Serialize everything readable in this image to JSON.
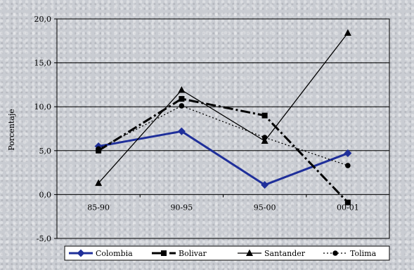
{
  "chart_data": {
    "type": "line",
    "title": "",
    "xlabel": "",
    "ylabel": "Porcentaje",
    "categories": [
      "85-90",
      "90-95",
      "95-00",
      "00-01"
    ],
    "ylim": [
      -5,
      20
    ],
    "ytick_values": [
      -5,
      0,
      5,
      10,
      15,
      20
    ],
    "ytick_labels": [
      "-5,0",
      "0,0",
      "5,0",
      "10,0",
      "15,0",
      "20,0"
    ],
    "grid": "horizontal",
    "legend_position": "bottom",
    "series": [
      {
        "name": "Colombia",
        "values": [
          5.5,
          7.2,
          1.1,
          4.7
        ],
        "color": "#1f2f9a",
        "marker": "diamond",
        "line": "solid-thick"
      },
      {
        "name": "Bolivar",
        "values": [
          5.0,
          10.9,
          9.0,
          -0.9
        ],
        "color": "#000000",
        "marker": "square",
        "line": "dashdot-thick"
      },
      {
        "name": "Santander",
        "values": [
          1.3,
          11.9,
          6.1,
          18.4
        ],
        "color": "#000000",
        "marker": "triangle",
        "line": "solid-thin"
      },
      {
        "name": "Tolima",
        "values": [
          5.2,
          10.1,
          6.5,
          3.3
        ],
        "color": "#000000",
        "marker": "circle",
        "line": "dotted"
      }
    ]
  }
}
